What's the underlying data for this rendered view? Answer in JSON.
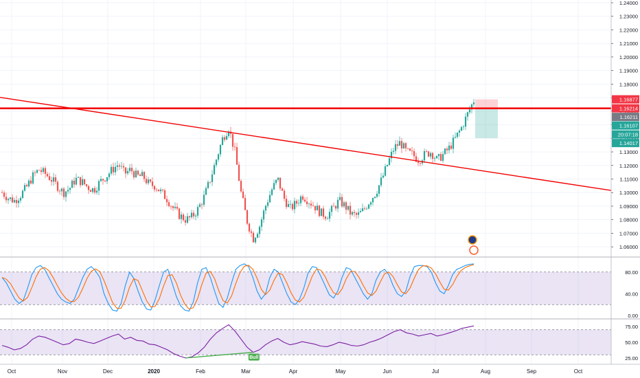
{
  "chart_data": [
    {
      "type": "candlestick",
      "ylim": [
        1.055,
        1.24
      ],
      "price_ticks": [
        "1.24000",
        "1.23000",
        "1.22000",
        "1.21000",
        "1.20000",
        "1.19000",
        "1.18000",
        "1.17000",
        "1.16000",
        "1.15000",
        "1.14000",
        "1.13000",
        "1.12000",
        "1.11000",
        "1.10000",
        "1.09000",
        "1.08000",
        "1.07000",
        "1.06000"
      ],
      "x_ticks": [
        "Oct",
        "Nov",
        "Dec",
        "2020",
        "Feb",
        "Mar",
        "Apr",
        "May",
        "Jun",
        "Jul",
        "Aug",
        "Sep",
        "Oct"
      ],
      "close_path": [
        1.1,
        1.096,
        1.094,
        1.098,
        1.104,
        1.112,
        1.117,
        1.114,
        1.11,
        1.105,
        1.1,
        1.103,
        1.11,
        1.108,
        1.104,
        1.102,
        1.108,
        1.112,
        1.117,
        1.121,
        1.114,
        1.117,
        1.112,
        1.112,
        1.106,
        1.105,
        1.1,
        1.095,
        1.088,
        1.083,
        1.08,
        1.082,
        1.088,
        1.097,
        1.11,
        1.125,
        1.14,
        1.148,
        1.13,
        1.1,
        1.079,
        1.066,
        1.075,
        1.09,
        1.102,
        1.11,
        1.096,
        1.088,
        1.092,
        1.098,
        1.094,
        1.09,
        1.085,
        1.083,
        1.088,
        1.094,
        1.09,
        1.084,
        1.083,
        1.087,
        1.094,
        1.1,
        1.11,
        1.122,
        1.133,
        1.137,
        1.13,
        1.128,
        1.124,
        1.128,
        1.13,
        1.124,
        1.128,
        1.133,
        1.14,
        1.148,
        1.158,
        1.168
      ],
      "horizontal_level": 1.16214,
      "trendline": {
        "start": [
          0,
          1.17
        ],
        "end": [
          77,
          1.117
        ]
      },
      "price_tags": [
        {
          "label": "1.16877",
          "color": "#f23645"
        },
        {
          "label": "1.16214",
          "color": "#f23645"
        },
        {
          "label": "1.16211",
          "color": "#787b86"
        },
        {
          "label": "1.16107",
          "color": "#26a69a"
        },
        {
          "label": "20:07:18",
          "color": "#26a69a"
        },
        {
          "label": "1.14017",
          "color": "#26a69a"
        }
      ],
      "position_tool": {
        "entry": 1.16214,
        "stop": 1.16877,
        "target": 1.14017
      },
      "colors": {
        "up": "#26a69a",
        "down": "#ef5350",
        "level": "#f20000"
      }
    },
    {
      "type": "line",
      "name": "Stochastic",
      "ylim": [
        -5,
        105
      ],
      "ticks": [
        "80.00",
        "40.00",
        "0.00"
      ],
      "band": [
        20,
        80
      ],
      "k_color": "#2196f3",
      "d_color": "#ff6d00",
      "k": [
        70,
        60,
        45,
        30,
        22,
        28,
        50,
        75,
        88,
        92,
        85,
        70,
        55,
        40,
        30,
        25,
        22,
        30,
        50,
        70,
        85,
        90,
        82,
        70,
        40,
        22,
        10,
        8,
        22,
        55,
        80,
        68,
        45,
        25,
        12,
        10,
        28,
        55,
        80,
        85,
        60,
        35,
        18,
        10,
        8,
        25,
        60,
        85,
        88,
        70,
        45,
        22,
        15,
        32,
        60,
        85,
        92,
        95,
        90,
        70,
        45,
        30,
        40,
        70,
        85,
        80,
        60,
        40,
        25,
        20,
        30,
        50,
        78,
        90,
        88,
        72,
        55,
        38,
        32,
        45,
        70,
        88,
        85,
        70,
        55,
        40,
        30,
        40,
        65,
        80,
        85,
        75,
        55,
        40,
        35,
        45,
        72,
        90,
        92,
        92,
        90,
        80,
        60,
        45,
        40,
        55,
        75,
        85,
        88,
        92,
        94,
        95
      ]
    },
    {
      "type": "line",
      "name": "RSI",
      "ylim": [
        15,
        85
      ],
      "ticks": [
        "75.00",
        "50.00",
        "25.00"
      ],
      "band": [
        30,
        70
      ],
      "line_color": "#7b1fa2",
      "values": [
        45,
        42,
        38,
        40,
        46,
        55,
        60,
        58,
        54,
        50,
        46,
        48,
        55,
        53,
        50,
        48,
        52,
        56,
        60,
        63,
        55,
        58,
        53,
        52,
        47,
        46,
        42,
        38,
        32,
        28,
        25,
        27,
        33,
        42,
        55,
        65,
        72,
        78,
        68,
        55,
        42,
        34,
        38,
        46,
        52,
        56,
        50,
        46,
        48,
        51,
        49,
        47,
        44,
        43,
        46,
        50,
        48,
        45,
        44,
        46,
        50,
        53,
        57,
        62,
        67,
        70,
        65,
        63,
        60,
        62,
        64,
        60,
        62,
        65,
        68,
        72,
        74,
        76
      ],
      "annotation": "Bull",
      "divergence_color": "#4caf50"
    }
  ]
}
